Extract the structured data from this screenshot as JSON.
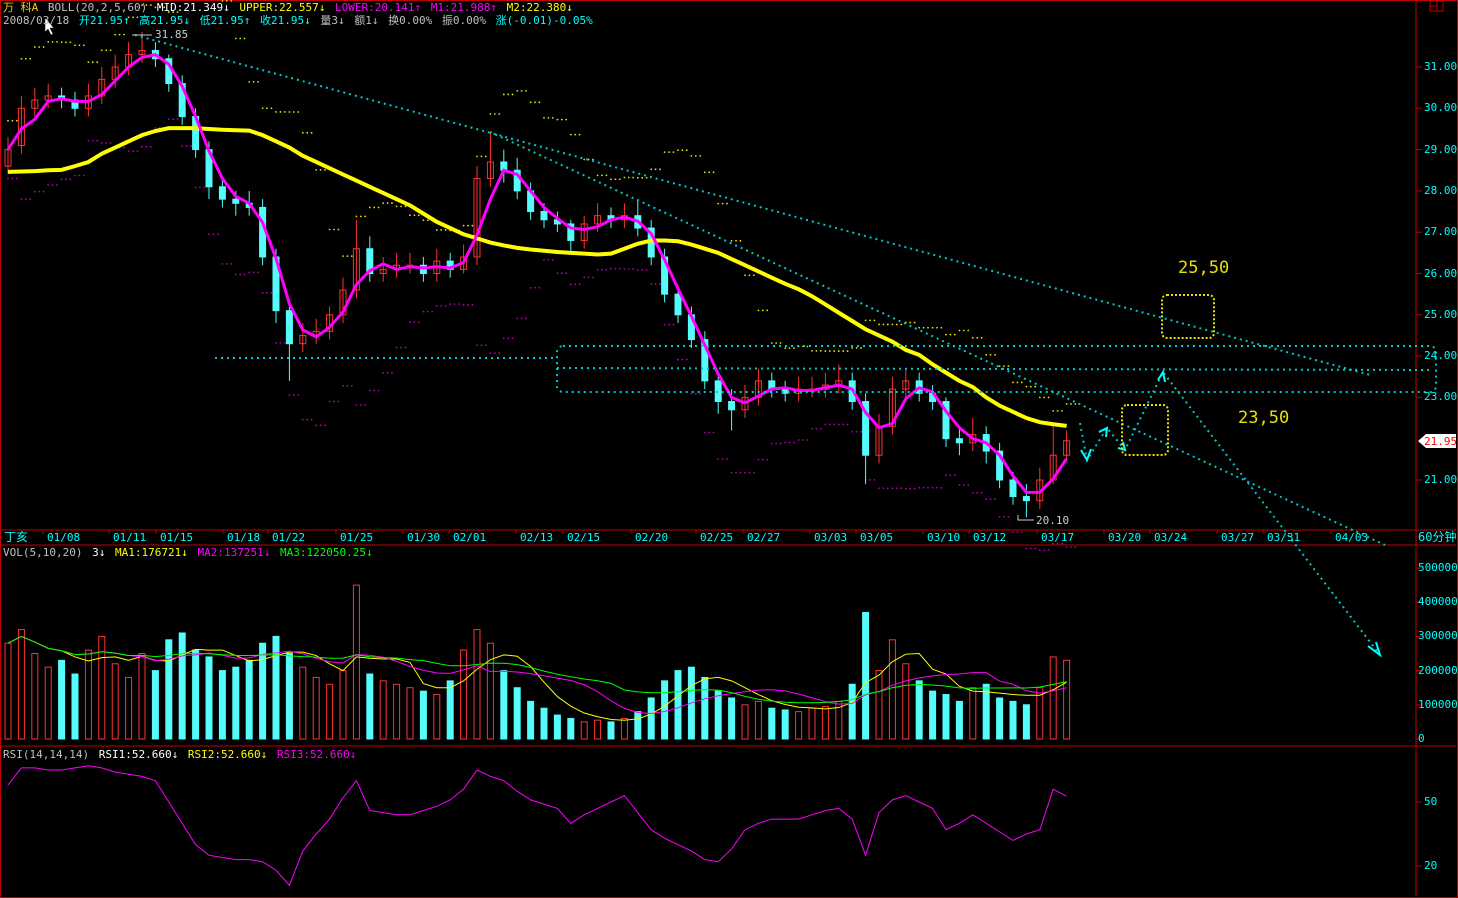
{
  "header": {
    "stock_name": "万 科A",
    "indicator": "BOLL(20,2,5,60)",
    "mid": "MID:21.349↓",
    "upper": "UPPER:22.557↓",
    "lower": "LOWER:20.141↑",
    "m1": "M1:21.988↑",
    "m2": "M2:22.380↓",
    "date": "2008/03/18",
    "open": "开21.95↑",
    "high": "高21.95↓",
    "low": "低21.95↑",
    "close": "收21.95↓",
    "volume": "量3↓",
    "amount": "额1↓",
    "turnover": "换0.00%",
    "amplitude": "振0.00%",
    "change": "涨(-0.01)-0.05%"
  },
  "volume_header": {
    "label": "VOL(5,10,20)",
    "value": "3↓",
    "ma1": "MA1:176721↓",
    "ma2": "MA2:137251↓",
    "ma3": "MA3:122050.25↓"
  },
  "rsi_header": {
    "label": "RSI(14,14,14)",
    "rsi1": "RSI1:52.660↓",
    "rsi2": "RSI2:52.660↓",
    "rsi3": "RSI3:52.660↓"
  },
  "x_axis": {
    "start_label": "丁亥",
    "period": "60分钟",
    "dates": [
      "01/08",
      "01/11",
      "01/15",
      "01/18",
      "01/22",
      "01/25",
      "01/30",
      "02/01",
      "02/13",
      "02/15",
      "02/20",
      "02/25",
      "02/27",
      "03/03",
      "03/05",
      "03/10",
      "03/12",
      "03/17",
      "03/20",
      "03/24",
      "03/27",
      "03/31",
      "04/03"
    ]
  },
  "price_axis": {
    "ticks": [
      "31.00",
      "30.00",
      "29.00",
      "28.00",
      "27.00",
      "26.00",
      "25.00",
      "24.00",
      "23.00",
      "21.00"
    ],
    "current": "21.95"
  },
  "volume_axis": {
    "ticks": [
      "500000",
      "400000",
      "300000",
      "200000",
      "100000",
      "0"
    ]
  },
  "rsi_axis": {
    "ticks": [
      "50",
      "20"
    ]
  },
  "annotations": {
    "high_label": "31.85",
    "low_label": "20.10",
    "target_upper": "25,50",
    "target_lower": "23,50"
  },
  "colors": {
    "up": "#ff3232",
    "down": "#54fcfc",
    "ma60": "#ffff00",
    "ma5": "#ff00ff",
    "trendline": "#00c8c8",
    "grid_border": "#c00000"
  },
  "chart_data": [
    {
      "type": "candlestick",
      "ylim": [
        20,
        32
      ],
      "close": [
        29.0,
        30.0,
        30.2,
        30.3,
        30.2,
        30.0,
        30.3,
        30.7,
        31.0,
        31.3,
        31.4,
        31.2,
        30.6,
        29.8,
        29.0,
        28.1,
        27.8,
        27.7,
        27.6,
        26.4,
        25.1,
        24.3,
        24.5,
        24.6,
        25.0,
        25.6,
        26.6,
        26.0,
        26.1,
        26.2,
        26.2,
        26.0,
        26.3,
        26.1,
        26.4,
        28.3,
        28.7,
        28.5,
        28.0,
        27.5,
        27.3,
        27.2,
        26.8,
        27.2,
        27.4,
        27.3,
        27.4,
        27.1,
        26.4,
        25.5,
        25.0,
        24.4,
        23.4,
        22.9,
        22.7,
        23.0,
        23.4,
        23.2,
        23.1,
        23.2,
        23.2,
        23.3,
        23.4,
        22.9,
        21.6,
        22.3,
        23.2,
        23.4,
        23.1,
        22.9,
        22.0,
        21.9,
        22.1,
        21.7,
        21.0,
        20.6,
        20.5,
        21.0,
        21.6,
        21.95
      ],
      "open": [
        28.6,
        29.1,
        30.0,
        30.2,
        30.3,
        30.2,
        30.0,
        30.3,
        30.7,
        31.0,
        31.3,
        31.4,
        31.2,
        30.6,
        29.8,
        29.0,
        28.1,
        27.8,
        27.7,
        27.6,
        26.4,
        25.1,
        24.3,
        24.5,
        24.6,
        25.0,
        25.6,
        26.6,
        26.0,
        26.1,
        26.2,
        26.2,
        26.0,
        26.3,
        26.1,
        26.4,
        28.3,
        28.7,
        28.5,
        28.0,
        27.5,
        27.3,
        27.2,
        26.8,
        27.2,
        27.4,
        27.3,
        27.4,
        27.1,
        26.4,
        25.5,
        25.0,
        24.4,
        23.4,
        22.9,
        22.7,
        23.0,
        23.4,
        23.2,
        23.1,
        23.2,
        23.2,
        23.3,
        23.4,
        22.9,
        21.6,
        22.3,
        23.2,
        23.4,
        23.1,
        22.9,
        22.0,
        21.9,
        22.1,
        21.7,
        21.0,
        20.6,
        20.5,
        21.0,
        21.6
      ],
      "high": [
        29.3,
        30.3,
        30.5,
        30.6,
        30.5,
        30.4,
        30.6,
        31.0,
        31.3,
        31.6,
        31.85,
        31.6,
        31.3,
        30.8,
        30.0,
        29.2,
        28.3,
        28.0,
        28.0,
        27.8,
        26.6,
        25.3,
        24.8,
        24.9,
        25.2,
        25.9,
        27.3,
        26.9,
        26.4,
        26.5,
        26.5,
        26.4,
        26.6,
        26.5,
        26.7,
        28.6,
        29.4,
        29.0,
        28.8,
        28.2,
        27.7,
        27.5,
        27.3,
        27.4,
        27.7,
        27.6,
        27.7,
        27.8,
        27.3,
        26.6,
        25.7,
        25.2,
        24.6,
        23.6,
        23.2,
        23.3,
        23.7,
        23.6,
        23.4,
        23.5,
        23.5,
        23.6,
        23.8,
        23.6,
        23.1,
        22.6,
        23.5,
        23.7,
        23.6,
        23.3,
        23.0,
        22.3,
        22.5,
        22.3,
        21.9,
        21.2,
        20.9,
        21.3,
        22.4,
        22.2
      ],
      "low": [
        28.4,
        28.9,
        29.8,
        30.0,
        30.0,
        29.8,
        29.8,
        30.1,
        30.5,
        30.8,
        31.1,
        31.0,
        30.4,
        29.6,
        28.8,
        27.8,
        27.6,
        27.4,
        27.4,
        26.2,
        24.8,
        23.4,
        24.1,
        24.3,
        24.4,
        24.8,
        25.4,
        25.8,
        25.8,
        25.9,
        26.0,
        25.8,
        25.8,
        25.9,
        26.0,
        26.2,
        28.1,
        28.2,
        27.8,
        27.3,
        27.1,
        27.0,
        26.5,
        26.6,
        27.0,
        27.1,
        27.1,
        26.9,
        26.2,
        25.3,
        24.8,
        24.2,
        23.2,
        22.6,
        22.2,
        22.5,
        22.8,
        23.0,
        22.9,
        22.9,
        23.0,
        23.0,
        23.1,
        22.7,
        20.9,
        21.4,
        22.1,
        23.0,
        22.9,
        22.7,
        21.8,
        21.6,
        21.7,
        21.4,
        20.8,
        20.4,
        20.1,
        20.3,
        20.9,
        21.5
      ],
      "ma60": [
        28.46,
        28.47,
        28.48,
        28.5,
        28.51,
        28.6,
        28.7,
        28.9,
        29.05,
        29.2,
        29.35,
        29.45,
        29.52,
        29.52,
        29.52,
        29.5,
        29.48,
        29.47,
        29.46,
        29.35,
        29.2,
        29.05,
        28.85,
        28.7,
        28.55,
        28.4,
        28.25,
        28.1,
        27.95,
        27.8,
        27.65,
        27.45,
        27.25,
        27.1,
        26.95,
        26.85,
        26.75,
        26.68,
        26.62,
        26.58,
        26.55,
        26.52,
        26.5,
        26.48,
        26.46,
        26.48,
        26.6,
        26.72,
        26.8,
        26.8,
        26.78,
        26.7,
        26.6,
        26.5,
        26.35,
        26.2,
        26.05,
        25.9,
        25.75,
        25.62,
        25.45,
        25.25,
        25.05,
        24.85,
        24.65,
        24.5,
        24.35,
        24.15,
        24.03,
        23.8,
        23.6,
        23.4,
        23.25,
        23.0,
        22.8,
        22.65,
        22.5,
        22.4,
        22.35,
        22.31
      ]
    },
    {
      "type": "bar",
      "ylim": [
        0,
        500000
      ],
      "values": [
        280000,
        320000,
        250000,
        210000,
        230000,
        190000,
        260000,
        300000,
        220000,
        180000,
        250000,
        200000,
        290000,
        310000,
        260000,
        240000,
        200000,
        210000,
        230000,
        280000,
        300000,
        250000,
        210000,
        180000,
        160000,
        200000,
        450000,
        190000,
        170000,
        160000,
        150000,
        140000,
        130000,
        170000,
        260000,
        320000,
        280000,
        200000,
        150000,
        110000,
        90000,
        70000,
        60000,
        50000,
        55000,
        50000,
        60000,
        80000,
        120000,
        170000,
        200000,
        210000,
        180000,
        140000,
        120000,
        100000,
        110000,
        90000,
        85000,
        80000,
        90000,
        95000,
        110000,
        160000,
        370000,
        200000,
        290000,
        220000,
        170000,
        140000,
        130000,
        110000,
        150000,
        160000,
        120000,
        110000,
        100000,
        150000,
        240000,
        230000
      ]
    },
    {
      "type": "line",
      "ylim": [
        0,
        100
      ],
      "values": [
        58,
        66,
        66,
        65,
        65,
        66,
        67,
        66,
        64,
        63,
        62,
        60,
        50,
        40,
        30,
        25,
        24,
        23,
        23,
        22,
        18,
        11,
        27,
        35,
        42,
        52,
        60,
        46,
        45,
        44,
        44,
        46,
        48,
        51,
        56,
        65,
        62,
        60,
        55,
        51,
        49,
        47,
        40,
        44,
        47,
        50,
        53,
        45,
        37,
        33,
        30,
        27,
        23,
        22,
        28,
        37,
        40,
        42,
        42,
        42,
        44,
        46,
        47,
        42,
        25,
        45,
        51,
        53,
        50,
        47,
        37,
        40,
        44,
        40,
        36,
        32,
        35,
        37,
        56,
        52.66
      ]
    }
  ]
}
